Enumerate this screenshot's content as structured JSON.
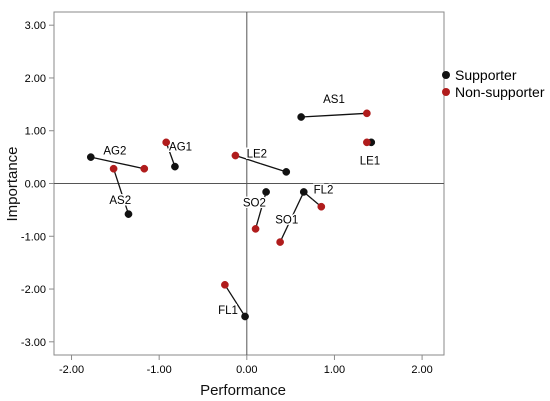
{
  "chart_data": {
    "type": "scatter",
    "xlabel": "Performance",
    "ylabel": "Importance",
    "xlim": [
      -2.2,
      2.25
    ],
    "ylim": [
      -3.25,
      3.25
    ],
    "x_ticks": [
      "-2.00",
      "-1.00",
      "0.00",
      "1.00",
      "2.00"
    ],
    "x_tick_values": [
      -2,
      -1,
      0,
      1,
      2
    ],
    "y_ticks": [
      "3.00",
      "2.00",
      "1.00",
      "0.00",
      "-1.00",
      "-2.00",
      "-3.00"
    ],
    "y_tick_values": [
      3,
      2,
      1,
      0,
      -1,
      -2,
      -3
    ],
    "grid": false,
    "reference_lines": {
      "x": 0,
      "y": 0
    },
    "legend_position": "right",
    "series": [
      {
        "name": "Supporter",
        "color": "#111111",
        "points": [
          {
            "label": "AS1",
            "x": 0.62,
            "y": 1.26
          },
          {
            "label": "LE1",
            "x": 1.42,
            "y": 0.78
          },
          {
            "label": "AG2",
            "x": -1.78,
            "y": 0.5
          },
          {
            "label": "AG1",
            "x": -0.82,
            "y": 0.32
          },
          {
            "label": "LE2",
            "x": 0.45,
            "y": 0.22
          },
          {
            "label": "AS2",
            "x": -1.35,
            "y": -0.58
          },
          {
            "label": "SO2",
            "x": 0.22,
            "y": -0.16
          },
          {
            "label": "FL2",
            "x": 0.65,
            "y": -0.16
          },
          {
            "label": "FL1",
            "x": -0.02,
            "y": -2.52
          }
        ]
      },
      {
        "name": "Non-supporter",
        "color": "#b01c1c",
        "points": [
          {
            "label": "AS1",
            "x": 1.37,
            "y": 1.33
          },
          {
            "label": "LE1",
            "x": 1.37,
            "y": 0.78
          },
          {
            "label": "AG1",
            "x": -0.92,
            "y": 0.78
          },
          {
            "label": "LE2",
            "x": -0.13,
            "y": 0.53
          },
          {
            "label": "AG2",
            "x": -1.17,
            "y": 0.28
          },
          {
            "label": "AS2",
            "x": -1.52,
            "y": 0.28
          },
          {
            "label": "SO2",
            "x": 0.1,
            "y": -0.86
          },
          {
            "label": "SO1",
            "x": 0.38,
            "y": -1.11
          },
          {
            "label": "FL2",
            "x": 0.85,
            "y": -0.44
          },
          {
            "label": "FL1",
            "x": -0.25,
            "y": -1.92
          }
        ]
      }
    ],
    "pair_labels": [
      {
        "text": "AS1",
        "from": [
          0.62,
          1.26
        ],
        "to": [
          1.37,
          1.33
        ]
      },
      {
        "text": "LE1",
        "from": [
          1.42,
          0.78
        ],
        "to": [
          1.37,
          0.78
        ]
      },
      {
        "text": "AG2",
        "from": [
          -1.78,
          0.5
        ],
        "to": [
          -1.17,
          0.28
        ]
      },
      {
        "text": "AG1",
        "from": [
          -0.82,
          0.32
        ],
        "to": [
          -0.92,
          0.78
        ]
      },
      {
        "text": "LE2",
        "from": [
          0.45,
          0.22
        ],
        "to": [
          -0.13,
          0.53
        ]
      },
      {
        "text": "AS2",
        "from": [
          -1.35,
          -0.58
        ],
        "to": [
          -1.52,
          0.28
        ]
      },
      {
        "text": "SO2",
        "from": [
          0.22,
          -0.16
        ],
        "to": [
          0.1,
          -0.86
        ]
      },
      {
        "text": "FL2",
        "from": [
          0.65,
          -0.16
        ],
        "to": [
          0.85,
          -0.44
        ]
      },
      {
        "text": "SO1",
        "from": [
          0.65,
          -0.16
        ],
        "to": [
          0.38,
          -1.11
        ]
      },
      {
        "text": "FL1",
        "from": [
          -0.02,
          -2.52
        ],
        "to": [
          -0.25,
          -1.92
        ]
      }
    ]
  }
}
